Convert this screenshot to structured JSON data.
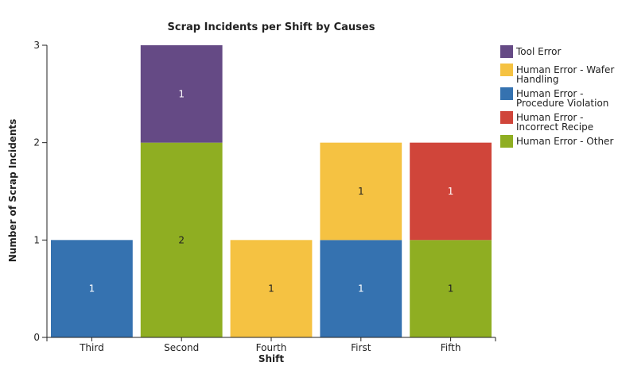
{
  "chart_data": {
    "type": "bar",
    "stacked": true,
    "title": "Scrap Incidents per Shift by Causes",
    "xlabel": "Shift",
    "ylabel": "Number of Scrap Incidents",
    "ylim": [
      0,
      3
    ],
    "yticks": [
      "0",
      "1",
      "2",
      "3"
    ],
    "categories": [
      "Third",
      "Second",
      "Fourth",
      "First",
      "Fifth"
    ],
    "series": [
      {
        "name": "Human Error - Other",
        "legend_lines": [
          "Human Error - Other"
        ],
        "color": "#8fae22",
        "label_color": "#222222",
        "values": [
          0,
          2,
          0,
          0,
          1
        ]
      },
      {
        "name": "Human Error - Procedure Violation",
        "legend_lines": [
          "Human Error -",
          "Procedure Violation"
        ],
        "color": "#3572b0",
        "label_color": "#ffffff",
        "values": [
          1,
          0,
          0,
          1,
          0
        ]
      },
      {
        "name": "Human Error - Wafer Handling",
        "legend_lines": [
          "Human Error - Wafer",
          "Handling"
        ],
        "color": "#f5c242",
        "label_color": "#222222",
        "values": [
          0,
          0,
          1,
          1,
          0
        ]
      },
      {
        "name": "Human Error - Incorrect Recipe",
        "legend_lines": [
          "Human Error -",
          "Incorrect Recipe"
        ],
        "color": "#d0453a",
        "label_color": "#ffffff",
        "values": [
          0,
          0,
          0,
          0,
          1
        ]
      },
      {
        "name": "Tool Error",
        "legend_lines": [
          "Tool Error"
        ],
        "color": "#654a85",
        "label_color": "#ffffff",
        "values": [
          0,
          1,
          0,
          0,
          0
        ]
      }
    ],
    "legend_order": [
      "Tool Error",
      "Human Error - Wafer Handling",
      "Human Error - Procedure Violation",
      "Human Error - Incorrect Recipe",
      "Human Error - Other"
    ],
    "legend": "right",
    "grid": false
  }
}
